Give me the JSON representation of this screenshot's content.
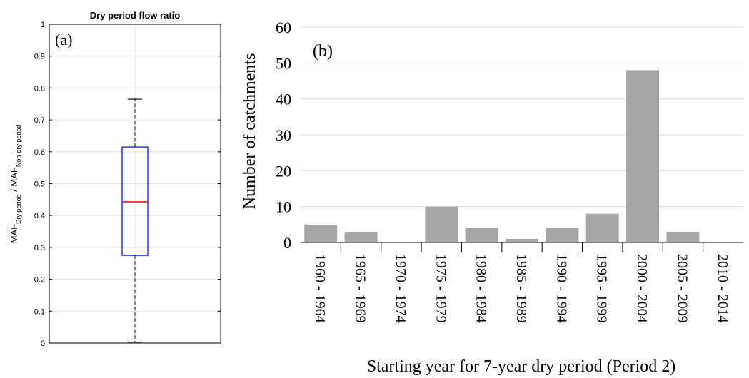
{
  "chart_data": [
    {
      "type": "boxplot",
      "panel_label": "(a)",
      "title": "Dry period flow ratio",
      "ylabel": {
        "main1": "MAF",
        "sub1": "Dry period",
        "sep": " / MAF",
        "sub2": "Non-dry period"
      },
      "ylim": [
        0,
        1
      ],
      "yticks": [
        "0",
        "0.1",
        "0.2",
        "0.3",
        "0.4",
        "0.5",
        "0.6",
        "0.7",
        "0.8",
        "0.9",
        "1"
      ],
      "ytick_values": [
        0,
        0.1,
        0.2,
        0.3,
        0.4,
        0.5,
        0.6,
        0.7,
        0.8,
        0.9,
        1
      ],
      "grid": true,
      "box": {
        "min": 0.003,
        "q1": 0.275,
        "median": 0.443,
        "q3": 0.615,
        "max": 0.765
      },
      "colors": {
        "box": "#0000ff",
        "median": "#ff0000",
        "whisker": "#000000"
      }
    },
    {
      "type": "bar",
      "panel_label": "(b)",
      "xlabel": "Starting year for 7-year dry period (Period 2)",
      "ylabel": "Number of catchments",
      "ylim": [
        0,
        60
      ],
      "yticks": [
        "0",
        "10",
        "20",
        "30",
        "40",
        "50",
        "60"
      ],
      "ytick_values": [
        0,
        10,
        20,
        30,
        40,
        50,
        60
      ],
      "grid": true,
      "categories": [
        "1960 - 1964",
        "1965 - 1969",
        "1970 - 1974",
        "1975 - 1979",
        "1980 - 1984",
        "1985 - 1989",
        "1990 - 1994",
        "1995 - 1999",
        "2000 - 2004",
        "2005 - 2009",
        "2010 - 2014"
      ],
      "values": [
        5,
        3,
        0,
        10,
        4,
        1,
        4,
        8,
        48,
        3,
        0
      ],
      "colors": {
        "bar": "#a6a6a6",
        "grid": "#d9d9d9"
      }
    }
  ]
}
